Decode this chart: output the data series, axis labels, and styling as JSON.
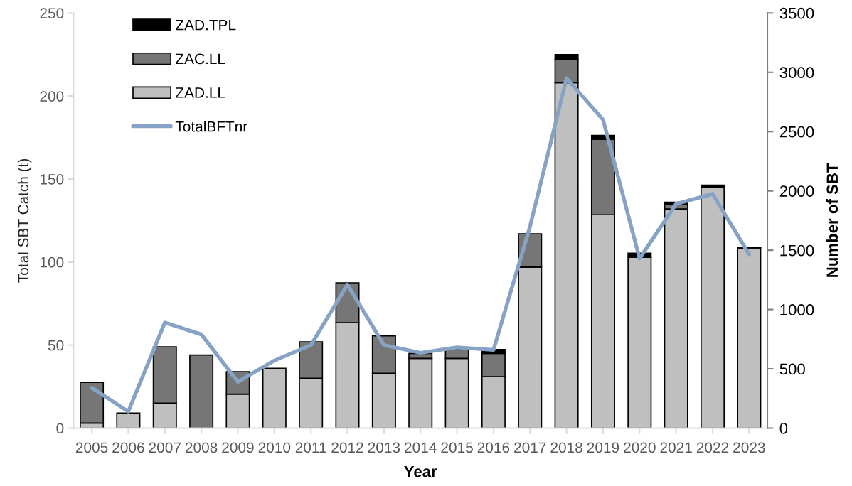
{
  "chart_data": {
    "type": "bar",
    "stacked": true,
    "xlabel": "Year",
    "ylabel": "Total SBT Catch (t)",
    "y2label": "Number of SBT",
    "categories": [
      "2005",
      "2006",
      "2007",
      "2008",
      "2009",
      "2010",
      "2011",
      "2012",
      "2013",
      "2014",
      "2015",
      "2016",
      "2017",
      "2018",
      "2019",
      "2020",
      "2021",
      "2022",
      "2023"
    ],
    "series": [
      {
        "name": "ZAD.LL",
        "color": "#bfbfbf",
        "values": [
          3,
          9,
          15,
          null,
          20.5,
          36,
          30,
          63.5,
          33,
          42,
          42,
          31,
          97,
          208,
          128.5,
          103,
          132,
          145,
          108.5
        ]
      },
      {
        "name": "ZAC.LL",
        "color": "#767676",
        "values": [
          24.5,
          null,
          34,
          44,
          13.5,
          null,
          22,
          24,
          22.5,
          3,
          5.5,
          14,
          20,
          14,
          45.5,
          null,
          2.5,
          null,
          null
        ]
      },
      {
        "name": "ZAD.TPL",
        "color": "#000000",
        "values": [
          null,
          null,
          null,
          null,
          null,
          null,
          null,
          null,
          null,
          null,
          null,
          2.3,
          null,
          3,
          2.3,
          2.3,
          1.5,
          1.3,
          0.5
        ]
      },
      {
        "name": "TotalBFTnr",
        "type": "line",
        "axis": "y2",
        "color": "#86a3c6",
        "values": [
          340,
          140,
          890,
          790,
          390,
          570,
          700,
          1210,
          700,
          635,
          680,
          660,
          1700,
          2950,
          2600,
          1430,
          1890,
          1975,
          1465
        ]
      }
    ],
    "ylim": [
      0,
      250
    ],
    "yticks": [
      0,
      50,
      100,
      150,
      200,
      250
    ],
    "y2lim": [
      0,
      3500
    ],
    "y2ticks": [
      0,
      500,
      1000,
      1500,
      2000,
      2500,
      3000,
      3500
    ],
    "legend": "top left"
  }
}
